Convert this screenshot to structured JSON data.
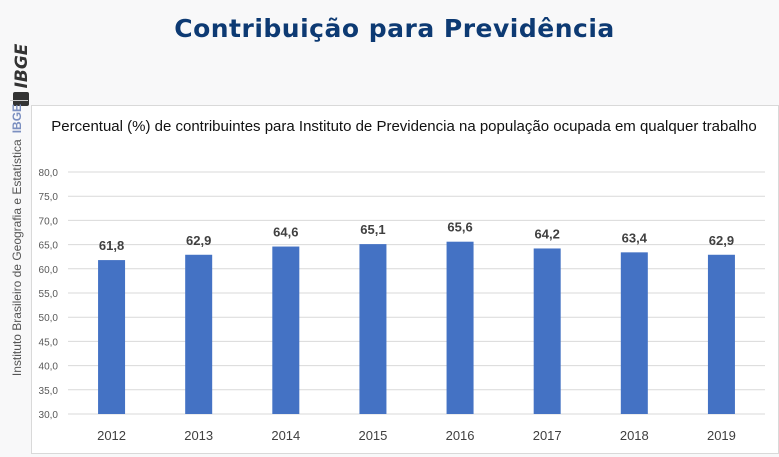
{
  "header": {
    "title": "Contribuição para Previdência"
  },
  "logo": {
    "text": "IBGE"
  },
  "side_label": {
    "text": "Instituto Brasileiro de Geografia e Estatística",
    "brand": "IBGE"
  },
  "colors": {
    "bar": "#4472c4",
    "title": "#0d3a73"
  },
  "chart_data": {
    "type": "bar",
    "title": "Percentual (%) de contribuintes para Instituto de Previdencia na população ocupada em qualquer trabalho",
    "categories": [
      "2012",
      "2013",
      "2014",
      "2015",
      "2016",
      "2017",
      "2018",
      "2019"
    ],
    "values": [
      61.8,
      62.9,
      64.6,
      65.1,
      65.6,
      64.2,
      63.4,
      62.9
    ],
    "data_labels": [
      "61,8",
      "62,9",
      "64,6",
      "65,1",
      "65,6",
      "64,2",
      "63,4",
      "62,9"
    ],
    "ylim": [
      30,
      80
    ],
    "yticks": [
      "30,0",
      "35,0",
      "40,0",
      "45,0",
      "50,0",
      "55,0",
      "60,0",
      "65,0",
      "70,0",
      "75,0",
      "80,0"
    ],
    "grid": true,
    "xlabel": "",
    "ylabel": ""
  }
}
